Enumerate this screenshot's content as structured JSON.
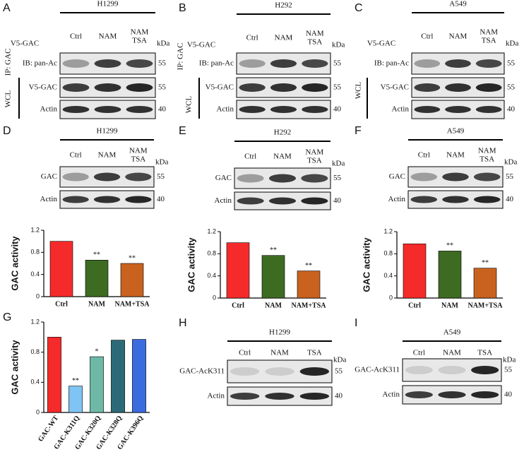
{
  "panels": [
    {
      "letter": "A",
      "cell_line": "H1299",
      "columns": [
        [
          "Ctrl"
        ],
        [
          "NAM"
        ],
        [
          "NAM",
          "TSA"
        ]
      ],
      "kda_label": "kDa",
      "header_label": "V5-GAC",
      "ip_label": "IP: GAC",
      "group_label": "WCL",
      "blots": [
        {
          "label": "IB: pan-Ac",
          "kda": "55"
        },
        {
          "label": "V5-GAC",
          "kda": "55"
        },
        {
          "label": "Actin",
          "kda": "40"
        }
      ]
    },
    {
      "letter": "B",
      "cell_line": "H292",
      "columns": [
        [
          "Ctrl"
        ],
        [
          "NAM"
        ],
        [
          "NAM",
          "TSA"
        ]
      ],
      "kda_label": "kDa",
      "header_label": "V5-GAC",
      "ip_label": "IP: GAC",
      "group_label": "WCL",
      "blots": [
        {
          "label": "IB: pan-Ac",
          "kda": "55"
        },
        {
          "label": "V5-GAC",
          "kda": "55"
        },
        {
          "label": "Actin",
          "kda": "40"
        }
      ]
    },
    {
      "letter": "C",
      "cell_line": "A549",
      "columns": [
        [
          "Ctrl"
        ],
        [
          "NAM"
        ],
        [
          "NAM",
          "TSA"
        ]
      ],
      "kda_label": "kDa",
      "header_label": "V5-GAC",
      "ip_label": "IP: GAC",
      "group_label": "WCL",
      "blots": [
        {
          "label": "IB: pan-Ac",
          "kda": "55"
        },
        {
          "label": "V5-GAC",
          "kda": "55"
        },
        {
          "label": "Actin",
          "kda": "40"
        }
      ]
    },
    {
      "letter": "D",
      "cell_line": "H1299",
      "columns": [
        [
          "Ctrl"
        ],
        [
          "NAM"
        ],
        [
          "NAM",
          "TSA"
        ]
      ],
      "kda_label": "kDa",
      "blots": [
        {
          "label": "GAC",
          "kda": "55"
        },
        {
          "label": "Actin",
          "kda": "40"
        }
      ]
    },
    {
      "letter": "E",
      "cell_line": "H292",
      "columns": [
        [
          "Ctrl"
        ],
        [
          "NAM"
        ],
        [
          "NAM",
          "TSA"
        ]
      ],
      "kda_label": "kDa",
      "blots": [
        {
          "label": "GAC",
          "kda": "55"
        },
        {
          "label": "Actin",
          "kda": "40"
        }
      ]
    },
    {
      "letter": "F",
      "cell_line": "A549",
      "columns": [
        [
          "Ctrl"
        ],
        [
          "NAM"
        ],
        [
          "NAM",
          "TSA"
        ]
      ],
      "kda_label": "kDa",
      "blots": [
        {
          "label": "GAC",
          "kda": "55"
        },
        {
          "label": "Actin",
          "kda": "40"
        }
      ]
    },
    {
      "letter": "H",
      "cell_line": "H1299",
      "columns": [
        [
          "Ctrl"
        ],
        [
          "NAM"
        ],
        [
          "TSA"
        ]
      ],
      "kda_label": "kDa",
      "blots": [
        {
          "label": "GAC-AcK311",
          "kda": "55"
        },
        {
          "label": "Actin",
          "kda": "40"
        }
      ]
    },
    {
      "letter": "I",
      "cell_line": "A549",
      "columns": [
        [
          "Ctrl"
        ],
        [
          "NAM"
        ],
        [
          "TSA"
        ]
      ],
      "kda_label": "kDa",
      "blots": [
        {
          "label": "GAC-AcK311",
          "kda": "55"
        },
        {
          "label": "Actin",
          "kda": "40"
        }
      ]
    }
  ],
  "chart_data": [
    {
      "type": "bar",
      "ylabel": "GAC activity",
      "categories": [
        "Ctrl",
        "NAM",
        "NAM+TSA"
      ],
      "values": [
        1.0,
        0.66,
        0.6
      ],
      "colors": [
        "#f52a2a",
        "#3d6b22",
        "#c8621e"
      ],
      "annotations": [
        null,
        "**",
        "**"
      ],
      "ylim": [
        0,
        1.2
      ],
      "yticks": [
        0,
        0.4,
        0.8,
        1.2
      ]
    },
    {
      "type": "bar",
      "ylabel": "GAC activity",
      "categories": [
        "Ctrl",
        "NAM",
        "NAM+TSA"
      ],
      "values": [
        1.0,
        0.77,
        0.49
      ],
      "colors": [
        "#f52a2a",
        "#3d6b22",
        "#c8621e"
      ],
      "annotations": [
        null,
        "**",
        "**"
      ],
      "ylim": [
        0,
        1.2
      ],
      "yticks": [
        0,
        0.4,
        0.8,
        1.2
      ]
    },
    {
      "type": "bar",
      "ylabel": "GAC activity",
      "categories": [
        "Ctrl",
        "NAM",
        "NAM+TSA"
      ],
      "values": [
        0.98,
        0.85,
        0.54
      ],
      "colors": [
        "#f52a2a",
        "#3d6b22",
        "#c8621e"
      ],
      "annotations": [
        null,
        "**",
        "**"
      ],
      "ylim": [
        0,
        1.2
      ],
      "yticks": [
        0,
        0.4,
        0.8,
        1.2
      ]
    },
    {
      "type": "bar",
      "letter": "G",
      "ylabel": "GAC activity",
      "categories": [
        "GAC-WT",
        "GAC-K311Q",
        "GAC-K320Q",
        "GAC-K328Q",
        "GAC-K396Q"
      ],
      "values": [
        1.0,
        0.35,
        0.74,
        0.96,
        0.97
      ],
      "colors": [
        "#f52a2a",
        "#7fc4f2",
        "#6db9a6",
        "#2d6a79",
        "#3a6ce0"
      ],
      "annotations": [
        null,
        "**",
        "*",
        null,
        null
      ],
      "ylim": [
        0,
        1.2
      ],
      "yticks": [
        0,
        0.4,
        0.8,
        1.2
      ]
    }
  ]
}
